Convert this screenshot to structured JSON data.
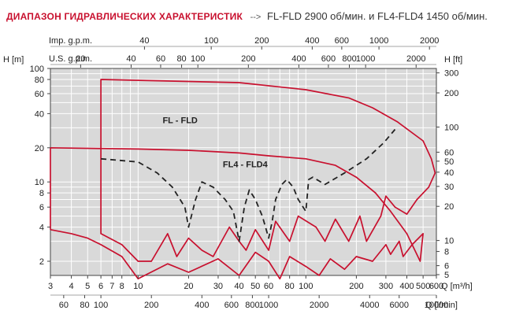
{
  "header": {
    "title": "ДИАПАЗОН ГИДРАВЛИЧЕСКИХ ХАРАКТЕРИСТИК",
    "arrow": "-->",
    "subtitle": "FL-FLD 2900 об/мин. и FL4-FLD4 1450 об/мин."
  },
  "chart_data": {
    "type": "line",
    "title": "ДИАПАЗОН ГИДРАВЛИЧЕСКИХ ХАРАКТЕРИСТИК",
    "subtitle": "FL-FLD 2900 об/мин. и FL4-FLD4 1450 об/мин.",
    "xscale": "log",
    "yscale": "log",
    "xlim": [
      3,
      600
    ],
    "ylim": [
      1.5,
      100
    ],
    "grid": true,
    "xlabel": "Q [m³/h]",
    "ylabel": "H [m]",
    "xlabel_secondary_bottom": "Q [l/min]",
    "xlabel_top_us": "U.S. g.p.m.",
    "xlabel_top_imp": "Imp. g.p.m.",
    "ylabel_secondary": "H [ft]",
    "x_ticks_m3h": [
      "3",
      "4",
      "5",
      "6",
      "7",
      "8",
      "10",
      "20",
      "30",
      "40",
      "50",
      "60",
      "80",
      "100",
      "200",
      "300",
      "400",
      "500",
      "600"
    ],
    "x_ticks_lmin": [
      "60",
      "80",
      "100",
      "200",
      "400",
      "600",
      "800",
      "1000",
      "2000",
      "4000",
      "6000",
      "10000"
    ],
    "x_ticks_usgpm": [
      "20",
      "40",
      "60",
      "80",
      "100",
      "200",
      "400",
      "600",
      "800",
      "1000",
      "2000"
    ],
    "x_ticks_impgpm": [
      "40",
      "100",
      "200",
      "400",
      "600",
      "1000",
      "2000"
    ],
    "y_ticks_m": [
      "2",
      "4",
      "6",
      "8",
      "10",
      "20",
      "40",
      "60",
      "80",
      "100"
    ],
    "y_ticks_ft": [
      "5",
      "6",
      "8",
      "10",
      "20",
      "30",
      "40",
      "50",
      "60",
      "100",
      "200",
      "300"
    ],
    "series": [
      {
        "name": "FL - FLD",
        "style": "solid",
        "color": "#c8102e",
        "points": [
          [
            6,
            17
          ],
          [
            6,
            80
          ],
          [
            40,
            75
          ],
          [
            100,
            65
          ],
          [
            180,
            55
          ],
          [
            250,
            45
          ],
          [
            350,
            34
          ],
          [
            500,
            23
          ],
          [
            560,
            16
          ],
          [
            590,
            12
          ],
          [
            540,
            9
          ],
          [
            460,
            7
          ],
          [
            400,
            5.2
          ],
          [
            340,
            6
          ],
          [
            300,
            7.5
          ],
          [
            280,
            5
          ],
          [
            230,
            3
          ],
          [
            210,
            5
          ],
          [
            180,
            3
          ],
          [
            150,
            4.7
          ],
          [
            130,
            3
          ],
          [
            115,
            4
          ],
          [
            90,
            5
          ],
          [
            80,
            3
          ],
          [
            66,
            4.5
          ],
          [
            60,
            2.5
          ],
          [
            50,
            3.8
          ],
          [
            44,
            2.5
          ],
          [
            40,
            3
          ],
          [
            35,
            4
          ],
          [
            28,
            2.2
          ],
          [
            24,
            2.5
          ],
          [
            20,
            3.2
          ],
          [
            17,
            2.2
          ],
          [
            15,
            3.5
          ],
          [
            12,
            2
          ],
          [
            10,
            2
          ],
          [
            8,
            2.8
          ],
          [
            6,
            3.5
          ],
          [
            6,
            17
          ]
        ]
      },
      {
        "name": "FL4 - FLD4",
        "style": "solid",
        "color": "#c8102e",
        "points": [
          [
            3,
            3.8
          ],
          [
            3,
            20
          ],
          [
            10,
            19.5
          ],
          [
            20,
            19
          ],
          [
            40,
            18
          ],
          [
            60,
            17
          ],
          [
            100,
            16
          ],
          [
            150,
            14
          ],
          [
            200,
            11
          ],
          [
            260,
            8
          ],
          [
            320,
            5.5
          ],
          [
            400,
            3.5
          ],
          [
            480,
            2
          ],
          [
            500,
            3.5
          ],
          [
            430,
            2.8
          ],
          [
            380,
            2.2
          ],
          [
            360,
            3
          ],
          [
            320,
            2.3
          ],
          [
            300,
            2.8
          ],
          [
            250,
            2
          ],
          [
            200,
            2.2
          ],
          [
            170,
            1.7
          ],
          [
            140,
            2.1
          ],
          [
            120,
            1.5
          ],
          [
            100,
            1.8
          ],
          [
            80,
            2.2
          ],
          [
            70,
            1.4
          ],
          [
            60,
            2
          ],
          [
            50,
            2.4
          ],
          [
            40,
            1.5
          ],
          [
            30,
            2.1
          ],
          [
            20,
            1.6
          ],
          [
            15,
            1.9
          ],
          [
            10,
            1.4
          ],
          [
            8,
            2.2
          ],
          [
            6,
            2.8
          ],
          [
            5,
            3.2
          ],
          [
            4,
            3.5
          ],
          [
            3,
            3.8
          ]
        ]
      },
      {
        "name": "",
        "style": "dashed",
        "color": "#222222",
        "points": [
          [
            6,
            16
          ],
          [
            10,
            15
          ],
          [
            13,
            12
          ],
          [
            16,
            9
          ],
          [
            19,
            6
          ],
          [
            20,
            4
          ],
          [
            22,
            7
          ],
          [
            24,
            10
          ],
          [
            28,
            9
          ],
          [
            33,
            7
          ],
          [
            37,
            5.5
          ],
          [
            40,
            3
          ],
          [
            43,
            6
          ],
          [
            46,
            8.5
          ],
          [
            50,
            7
          ],
          [
            55,
            5
          ],
          [
            60,
            3.2
          ],
          [
            63,
            4.5
          ],
          [
            66,
            7
          ],
          [
            72,
            9.5
          ],
          [
            77,
            10.5
          ],
          [
            84,
            9
          ],
          [
            90,
            7
          ],
          [
            100,
            5.5
          ],
          [
            104,
            10.5
          ],
          [
            110,
            11
          ],
          [
            130,
            9.5
          ],
          [
            170,
            12
          ],
          [
            230,
            16
          ],
          [
            290,
            22
          ],
          [
            340,
            29
          ]
        ]
      }
    ],
    "annotations": [
      "FL - FLD",
      "FL4 - FLD4"
    ]
  }
}
